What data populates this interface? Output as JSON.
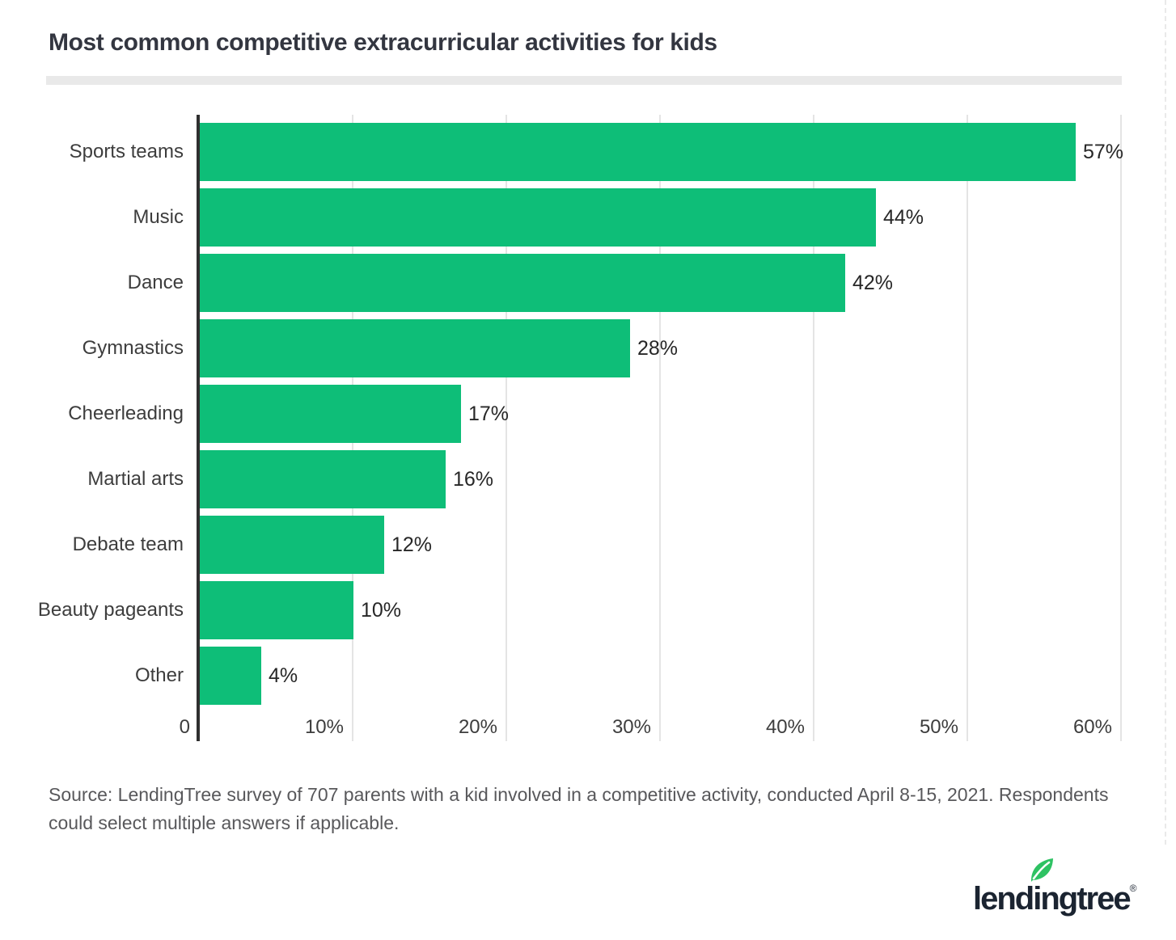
{
  "title": "Most common competitive extracurricular activities for kids",
  "chart_data": {
    "type": "bar",
    "orientation": "horizontal",
    "title": "Most common competitive extracurricular activities for kids",
    "categories": [
      "Sports teams",
      "Music",
      "Dance",
      "Gymnastics",
      "Cheerleading",
      "Martial arts",
      "Debate team",
      "Beauty pageants",
      "Other"
    ],
    "values": [
      57,
      44,
      42,
      28,
      17,
      16,
      12,
      10,
      4
    ],
    "value_labels": [
      "57%",
      "44%",
      "42%",
      "28%",
      "17%",
      "16%",
      "12%",
      "10%",
      "4%"
    ],
    "x_tick_labels": [
      "0",
      "10%",
      "20%",
      "30%",
      "40%",
      "50%",
      "60%"
    ],
    "xlabel": "",
    "ylabel": "",
    "xlim": [
      0,
      60
    ],
    "grid": "vertical",
    "legend": false,
    "bar_color": "#0ebe78"
  },
  "source_note": {
    "text": "Source: LendingTree survey of 707 parents with a kid involved in a competitive activity, conducted April 8-15, 2021. Respondents could select multiple answers if applicable."
  },
  "logo": {
    "wordmark": "lendingtree",
    "registered": "®"
  },
  "colors": {
    "bar_green": "#0ebe78",
    "leaf_green": "#2ec263",
    "logo_navy": "#1b2431",
    "axis": "#2f2f2f",
    "gridline": "#e4e4e4",
    "divider": "#e9e9e9",
    "title_text": "#333640",
    "label_text": "#3d3d3d",
    "source_text": "#58585b"
  }
}
